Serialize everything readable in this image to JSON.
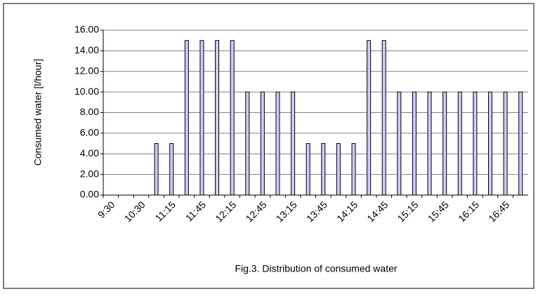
{
  "chart_data": {
    "type": "bar",
    "caption": "Fig.3. Distribution of consumed water",
    "y_label": "Consumed water [l/hour]",
    "categories": [
      "9:30",
      null,
      "10:30",
      null,
      "11:15",
      null,
      "11:45",
      null,
      "12:15",
      null,
      "12:45",
      null,
      "13:15",
      null,
      "13:45",
      null,
      "14:15",
      null,
      "14:45",
      null,
      "15:15",
      null,
      "15:45",
      null,
      "16:15",
      null,
      "16:45",
      null
    ],
    "values": [
      0,
      0,
      0,
      5,
      5,
      15,
      15,
      15,
      15,
      10,
      10,
      10,
      10,
      5,
      5,
      5,
      5,
      15,
      15,
      10,
      10,
      10,
      10,
      10,
      10,
      10,
      10,
      10
    ],
    "color": "#ccccff",
    "ylim": [
      0,
      16
    ],
    "yticks": [
      {
        "value": 0,
        "label": "0.00"
      },
      {
        "value": 2,
        "label": "2.00"
      },
      {
        "value": 4,
        "label": "4.00"
      },
      {
        "value": 6,
        "label": "6.00"
      },
      {
        "value": 8,
        "label": "8.00"
      },
      {
        "value": 10,
        "label": "10.00"
      },
      {
        "value": 12,
        "label": "12.00"
      },
      {
        "value": 14,
        "label": "14.00"
      },
      {
        "value": 16,
        "label": "16.00"
      }
    ],
    "grid": true
  }
}
